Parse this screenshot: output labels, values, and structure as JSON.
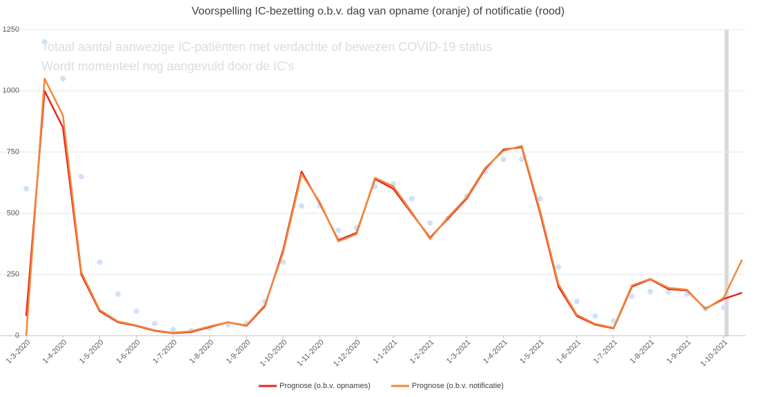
{
  "chart_data": {
    "type": "line",
    "title": "Voorspelling IC-bezetting o.b.v. dag van opname (oranje) of notificatie (rood)",
    "annotations": [
      "Totaal aantal aanwezige IC-patiënten met verdachte of bewezen COVID-19 status",
      "Wordt momenteel nog aangevuld door de IC's"
    ],
    "categories": [
      "1-3-2020",
      null,
      "1-4-2020",
      null,
      "1-5-2020",
      null,
      "1-6-2020",
      null,
      "1-7-2020",
      null,
      "1-8-2020",
      null,
      "1-9-2020",
      null,
      "1-10-2020",
      null,
      "1-11-2020",
      null,
      "1-12-2020",
      null,
      "1-1-2021",
      null,
      "1-2-2021",
      null,
      "1-3-2021",
      null,
      "1-4-2021",
      null,
      "1-5-2021",
      null,
      "1-6-2021",
      null,
      "1-7-2021",
      null,
      "1-8-2021",
      null,
      "1-9-2021",
      null,
      "1-10-2021",
      null
    ],
    "series": [
      {
        "color": "#cfe2f7",
        "values": [
          600,
          1200,
          1050,
          650,
          300,
          170,
          100,
          50,
          25,
          20,
          30,
          45,
          50,
          140,
          300,
          530,
          530,
          430,
          440,
          610,
          620,
          560,
          460,
          480,
          570,
          670,
          720,
          720,
          560,
          280,
          140,
          80,
          60,
          160,
          180,
          180,
          170,
          110,
          115,
          null
        ]
      },
      {
        "name": "Prognose (o.b.v. opnames)",
        "color": "#e8231e",
        "values": [
          80,
          1000,
          850,
          250,
          100,
          55,
          40,
          20,
          10,
          15,
          35,
          55,
          40,
          120,
          350,
          670,
          540,
          390,
          420,
          640,
          600,
          500,
          400,
          480,
          560,
          680,
          760,
          770,
          500,
          200,
          80,
          45,
          30,
          200,
          230,
          190,
          185,
          110,
          150,
          175
        ]
      },
      {
        "name": "Prognose (o.b.v. notificatie)",
        "color": "#f0883a",
        "values": [
          0,
          1050,
          900,
          260,
          105,
          58,
          42,
          22,
          12,
          18,
          38,
          55,
          42,
          125,
          340,
          660,
          545,
          385,
          415,
          645,
          610,
          505,
          395,
          485,
          565,
          685,
          755,
          775,
          510,
          210,
          85,
          48,
          32,
          205,
          232,
          195,
          188,
          108,
          155,
          310
        ]
      }
    ],
    "ylim": [
      0,
      1250
    ],
    "yticks": [
      0,
      250,
      500,
      750,
      1000,
      1250
    ],
    "grid": true
  }
}
